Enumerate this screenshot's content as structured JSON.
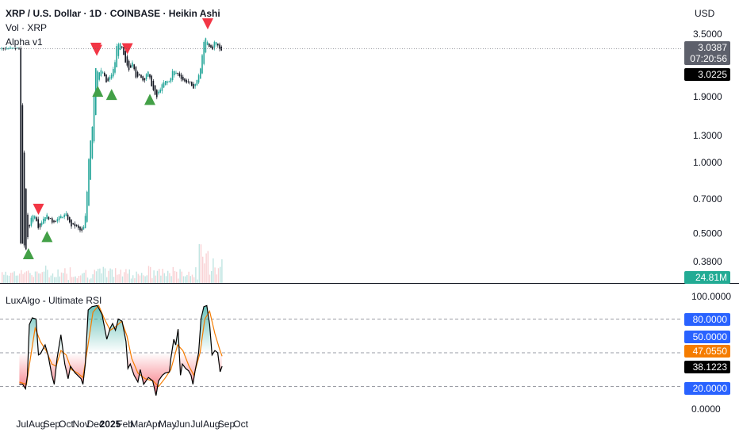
{
  "header": {
    "title": "XRP / U.S. Dollar · 1D · COINBASE · Heikin Ashi",
    "vol_label": "Vol · XRP",
    "indicator_label": "Alpha v1",
    "currency": "USD"
  },
  "price_panel": {
    "price_axis_ticks": [
      "3.5000",
      "1.9000",
      "1.3000",
      "1.0000",
      "0.7000",
      "0.5000",
      "0.3800"
    ],
    "last_price": "3.0387",
    "countdown": "07:20:56",
    "prev_close": "3.0225",
    "volume_label": "24.81M",
    "colors": {
      "up": "#26a69a",
      "down": "#131722",
      "sell_marker": "#f23645",
      "buy_marker": "#43a047",
      "last_price_bg": "#5d606b",
      "prev_close_bg": "#000000",
      "volume_bg": "#22ab94"
    }
  },
  "rsi_panel": {
    "label": "LuxAlgo - Ultimate RSI",
    "axis_ticks": [
      "100.0000",
      "0.0000"
    ],
    "level_tags": [
      {
        "value": "80.0000",
        "color": "#2962ff"
      },
      {
        "value": "50.0000",
        "color": "#2962ff"
      },
      {
        "value": "20.0000",
        "color": "#2962ff"
      }
    ],
    "signal_value": "47.0550",
    "signal_color": "#f57c00",
    "rsi_value": "38.1223",
    "rsi_color": "#000000"
  },
  "time_axis": [
    "Jul",
    "Aug",
    "Sep",
    "Oct",
    "Nov",
    "Dec",
    "2025",
    "Feb",
    "Mar",
    "Apr",
    "May",
    "Jun",
    "Jul",
    "Aug",
    "Sep",
    "Oct"
  ],
  "chart_data": [
    {
      "type": "candlestick",
      "title": "XRP / U.S. Dollar · 1D · COINBASE · Heikin Ashi",
      "scale": "log",
      "ylim": [
        0.34,
        4.0
      ],
      "x_axis": [
        "Jul",
        "Aug",
        "Sep",
        "Oct",
        "Nov",
        "Dec",
        "2025",
        "Feb",
        "Mar",
        "Apr",
        "May",
        "Jun",
        "Jul",
        "Aug",
        "Sep",
        "Oct"
      ],
      "close_path": [
        {
          "x": "2024-06-25",
          "y": 0.47
        },
        {
          "x": "2024-07-05",
          "y": 0.44
        },
        {
          "x": "2024-07-10",
          "y": 0.43
        },
        {
          "x": "2024-07-15",
          "y": 0.52
        },
        {
          "x": "2024-07-20",
          "y": 0.59
        },
        {
          "x": "2024-07-28",
          "y": 0.6
        },
        {
          "x": "2024-08-05",
          "y": 0.52
        },
        {
          "x": "2024-08-12",
          "y": 0.57
        },
        {
          "x": "2024-08-20",
          "y": 0.6
        },
        {
          "x": "2024-09-01",
          "y": 0.56
        },
        {
          "x": "2024-09-10",
          "y": 0.57
        },
        {
          "x": "2024-09-20",
          "y": 0.59
        },
        {
          "x": "2024-10-01",
          "y": 0.6
        },
        {
          "x": "2024-10-10",
          "y": 0.54
        },
        {
          "x": "2024-10-20",
          "y": 0.54
        },
        {
          "x": "2024-11-01",
          "y": 0.51
        },
        {
          "x": "2024-11-05",
          "y": 0.51
        },
        {
          "x": "2024-11-12",
          "y": 0.62
        },
        {
          "x": "2024-11-18",
          "y": 1.1
        },
        {
          "x": "2024-11-25",
          "y": 1.45
        },
        {
          "x": "2024-12-02",
          "y": 2.55
        },
        {
          "x": "2024-12-08",
          "y": 2.4
        },
        {
          "x": "2024-12-15",
          "y": 2.45
        },
        {
          "x": "2024-12-25",
          "y": 2.15
        },
        {
          "x": "2025-01-01",
          "y": 2.3
        },
        {
          "x": "2025-01-05",
          "y": 2.4
        },
        {
          "x": "2025-01-10",
          "y": 2.55
        },
        {
          "x": "2025-01-16",
          "y": 3.25
        },
        {
          "x": "2025-01-25",
          "y": 3.1
        },
        {
          "x": "2025-02-01",
          "y": 2.65
        },
        {
          "x": "2025-02-10",
          "y": 2.45
        },
        {
          "x": "2025-02-17",
          "y": 2.7
        },
        {
          "x": "2025-02-25",
          "y": 2.25
        },
        {
          "x": "2025-03-05",
          "y": 2.35
        },
        {
          "x": "2025-03-12",
          "y": 2.2
        },
        {
          "x": "2025-03-20",
          "y": 2.45
        },
        {
          "x": "2025-03-28",
          "y": 2.15
        },
        {
          "x": "2025-04-07",
          "y": 1.85
        },
        {
          "x": "2025-04-15",
          "y": 2.05
        },
        {
          "x": "2025-04-25",
          "y": 2.2
        },
        {
          "x": "2025-05-05",
          "y": 2.2
        },
        {
          "x": "2025-05-12",
          "y": 2.45
        },
        {
          "x": "2025-05-25",
          "y": 2.35
        },
        {
          "x": "2025-06-05",
          "y": 2.2
        },
        {
          "x": "2025-06-15",
          "y": 2.2
        },
        {
          "x": "2025-06-22",
          "y": 2.05
        },
        {
          "x": "2025-07-01",
          "y": 2.2
        },
        {
          "x": "2025-07-10",
          "y": 2.55
        },
        {
          "x": "2025-07-18",
          "y": 3.45
        },
        {
          "x": "2025-07-25",
          "y": 3.2
        },
        {
          "x": "2025-08-02",
          "y": 2.95
        },
        {
          "x": "2025-08-08",
          "y": 3.25
        },
        {
          "x": "2025-08-15",
          "y": 3.1
        },
        {
          "x": "2025-08-20",
          "y": 2.95
        },
        {
          "x": "2025-08-23",
          "y": 3.04
        }
      ],
      "sell_signals": [
        "2024-08-04",
        "2024-12-02",
        "2024-12-04",
        "2025-02-06",
        "2025-07-24"
      ],
      "buy_signals": [
        "2024-07-14",
        "2024-08-22",
        "2024-12-06",
        "2025-01-04",
        "2025-03-25"
      ],
      "last_price": 3.0387,
      "previous_close": 3.0225,
      "volume_last": "24.81M"
    },
    {
      "type": "line",
      "title": "LuxAlgo - Ultimate RSI",
      "ylim": [
        0,
        100
      ],
      "levels": [
        80,
        50,
        20
      ],
      "series": [
        {
          "name": "",
          "color": "#000000",
          "points": [
            {
              "x": "2024-06-25",
              "y": 22
            },
            {
              "x": "2024-07-02",
              "y": 22
            },
            {
              "x": "2024-07-08",
              "y": 18
            },
            {
              "x": "2024-07-12",
              "y": 30
            },
            {
              "x": "2024-07-16",
              "y": 75
            },
            {
              "x": "2024-07-22",
              "y": 81
            },
            {
              "x": "2024-07-30",
              "y": 80
            },
            {
              "x": "2024-08-04",
              "y": 48
            },
            {
              "x": "2024-08-08",
              "y": 49
            },
            {
              "x": "2024-08-18",
              "y": 57
            },
            {
              "x": "2024-08-24",
              "y": 48
            },
            {
              "x": "2024-09-01",
              "y": 30
            },
            {
              "x": "2024-09-06",
              "y": 22
            },
            {
              "x": "2024-09-12",
              "y": 45
            },
            {
              "x": "2024-09-20",
              "y": 66
            },
            {
              "x": "2024-09-28",
              "y": 40
            },
            {
              "x": "2024-10-05",
              "y": 27
            },
            {
              "x": "2024-10-10",
              "y": 38
            },
            {
              "x": "2024-10-20",
              "y": 32
            },
            {
              "x": "2024-10-25",
              "y": 30
            },
            {
              "x": "2024-11-01",
              "y": 27
            },
            {
              "x": "2024-11-05",
              "y": 22
            },
            {
              "x": "2024-11-10",
              "y": 40
            },
            {
              "x": "2024-11-16",
              "y": 88
            },
            {
              "x": "2024-11-24",
              "y": 91
            },
            {
              "x": "2024-12-05",
              "y": 92
            },
            {
              "x": "2024-12-15",
              "y": 84
            },
            {
              "x": "2024-12-25",
              "y": 62
            },
            {
              "x": "2025-01-01",
              "y": 72
            },
            {
              "x": "2025-01-06",
              "y": 76
            },
            {
              "x": "2025-01-12",
              "y": 70
            },
            {
              "x": "2025-01-18",
              "y": 80
            },
            {
              "x": "2025-01-26",
              "y": 78
            },
            {
              "x": "2025-02-03",
              "y": 60
            },
            {
              "x": "2025-02-07",
              "y": 36
            },
            {
              "x": "2025-02-12",
              "y": 40
            },
            {
              "x": "2025-02-20",
              "y": 30
            },
            {
              "x": "2025-02-28",
              "y": 24
            },
            {
              "x": "2025-03-05",
              "y": 35
            },
            {
              "x": "2025-03-12",
              "y": 22
            },
            {
              "x": "2025-03-22",
              "y": 28
            },
            {
              "x": "2025-03-31",
              "y": 25
            },
            {
              "x": "2025-04-07",
              "y": 12
            },
            {
              "x": "2025-04-12",
              "y": 25
            },
            {
              "x": "2025-04-20",
              "y": 30
            },
            {
              "x": "2025-04-26",
              "y": 32
            },
            {
              "x": "2025-05-05",
              "y": 33
            },
            {
              "x": "2025-05-08",
              "y": 45
            },
            {
              "x": "2025-05-14",
              "y": 62
            },
            {
              "x": "2025-05-18",
              "y": 57
            },
            {
              "x": "2025-05-23",
              "y": 71
            },
            {
              "x": "2025-05-28",
              "y": 30
            },
            {
              "x": "2025-06-01",
              "y": 40
            },
            {
              "x": "2025-06-08",
              "y": 36
            },
            {
              "x": "2025-06-14",
              "y": 34
            },
            {
              "x": "2025-06-19",
              "y": 30
            },
            {
              "x": "2025-06-23",
              "y": 22
            },
            {
              "x": "2025-06-28",
              "y": 35
            },
            {
              "x": "2025-07-05",
              "y": 50
            },
            {
              "x": "2025-07-10",
              "y": 80
            },
            {
              "x": "2025-07-16",
              "y": 91
            },
            {
              "x": "2025-07-22",
              "y": 92
            },
            {
              "x": "2025-07-28",
              "y": 75
            },
            {
              "x": "2025-08-02",
              "y": 48
            },
            {
              "x": "2025-08-08",
              "y": 52
            },
            {
              "x": "2025-08-14",
              "y": 50
            },
            {
              "x": "2025-08-19",
              "y": 33
            },
            {
              "x": "2025-08-23",
              "y": 38
            }
          ]
        },
        {
          "name": "",
          "color": "#f57c00",
          "points": [
            {
              "x": "2024-06-25",
              "y": 24
            },
            {
              "x": "2024-07-10",
              "y": 22
            },
            {
              "x": "2024-07-18",
              "y": 45
            },
            {
              "x": "2024-07-28",
              "y": 72
            },
            {
              "x": "2024-08-08",
              "y": 60
            },
            {
              "x": "2024-08-20",
              "y": 52
            },
            {
              "x": "2024-09-01",
              "y": 40
            },
            {
              "x": "2024-09-10",
              "y": 38
            },
            {
              "x": "2024-09-20",
              "y": 52
            },
            {
              "x": "2024-10-01",
              "y": 48
            },
            {
              "x": "2024-10-12",
              "y": 35
            },
            {
              "x": "2024-10-25",
              "y": 32
            },
            {
              "x": "2024-11-05",
              "y": 28
            },
            {
              "x": "2024-11-15",
              "y": 55
            },
            {
              "x": "2024-11-26",
              "y": 86
            },
            {
              "x": "2024-12-08",
              "y": 92
            },
            {
              "x": "2024-12-20",
              "y": 80
            },
            {
              "x": "2025-01-01",
              "y": 70
            },
            {
              "x": "2025-01-12",
              "y": 73
            },
            {
              "x": "2025-01-25",
              "y": 78
            },
            {
              "x": "2025-02-05",
              "y": 65
            },
            {
              "x": "2025-02-15",
              "y": 45
            },
            {
              "x": "2025-02-28",
              "y": 32
            },
            {
              "x": "2025-03-15",
              "y": 27
            },
            {
              "x": "2025-04-01",
              "y": 25
            },
            {
              "x": "2025-04-12",
              "y": 20
            },
            {
              "x": "2025-04-25",
              "y": 27
            },
            {
              "x": "2025-05-08",
              "y": 35
            },
            {
              "x": "2025-05-22",
              "y": 57
            },
            {
              "x": "2025-06-02",
              "y": 52
            },
            {
              "x": "2025-06-15",
              "y": 38
            },
            {
              "x": "2025-06-25",
              "y": 30
            },
            {
              "x": "2025-07-08",
              "y": 50
            },
            {
              "x": "2025-07-18",
              "y": 80
            },
            {
              "x": "2025-07-28",
              "y": 87
            },
            {
              "x": "2025-08-08",
              "y": 67
            },
            {
              "x": "2025-08-18",
              "y": 53
            },
            {
              "x": "2025-08-23",
              "y": 47
            }
          ]
        }
      ]
    }
  ]
}
